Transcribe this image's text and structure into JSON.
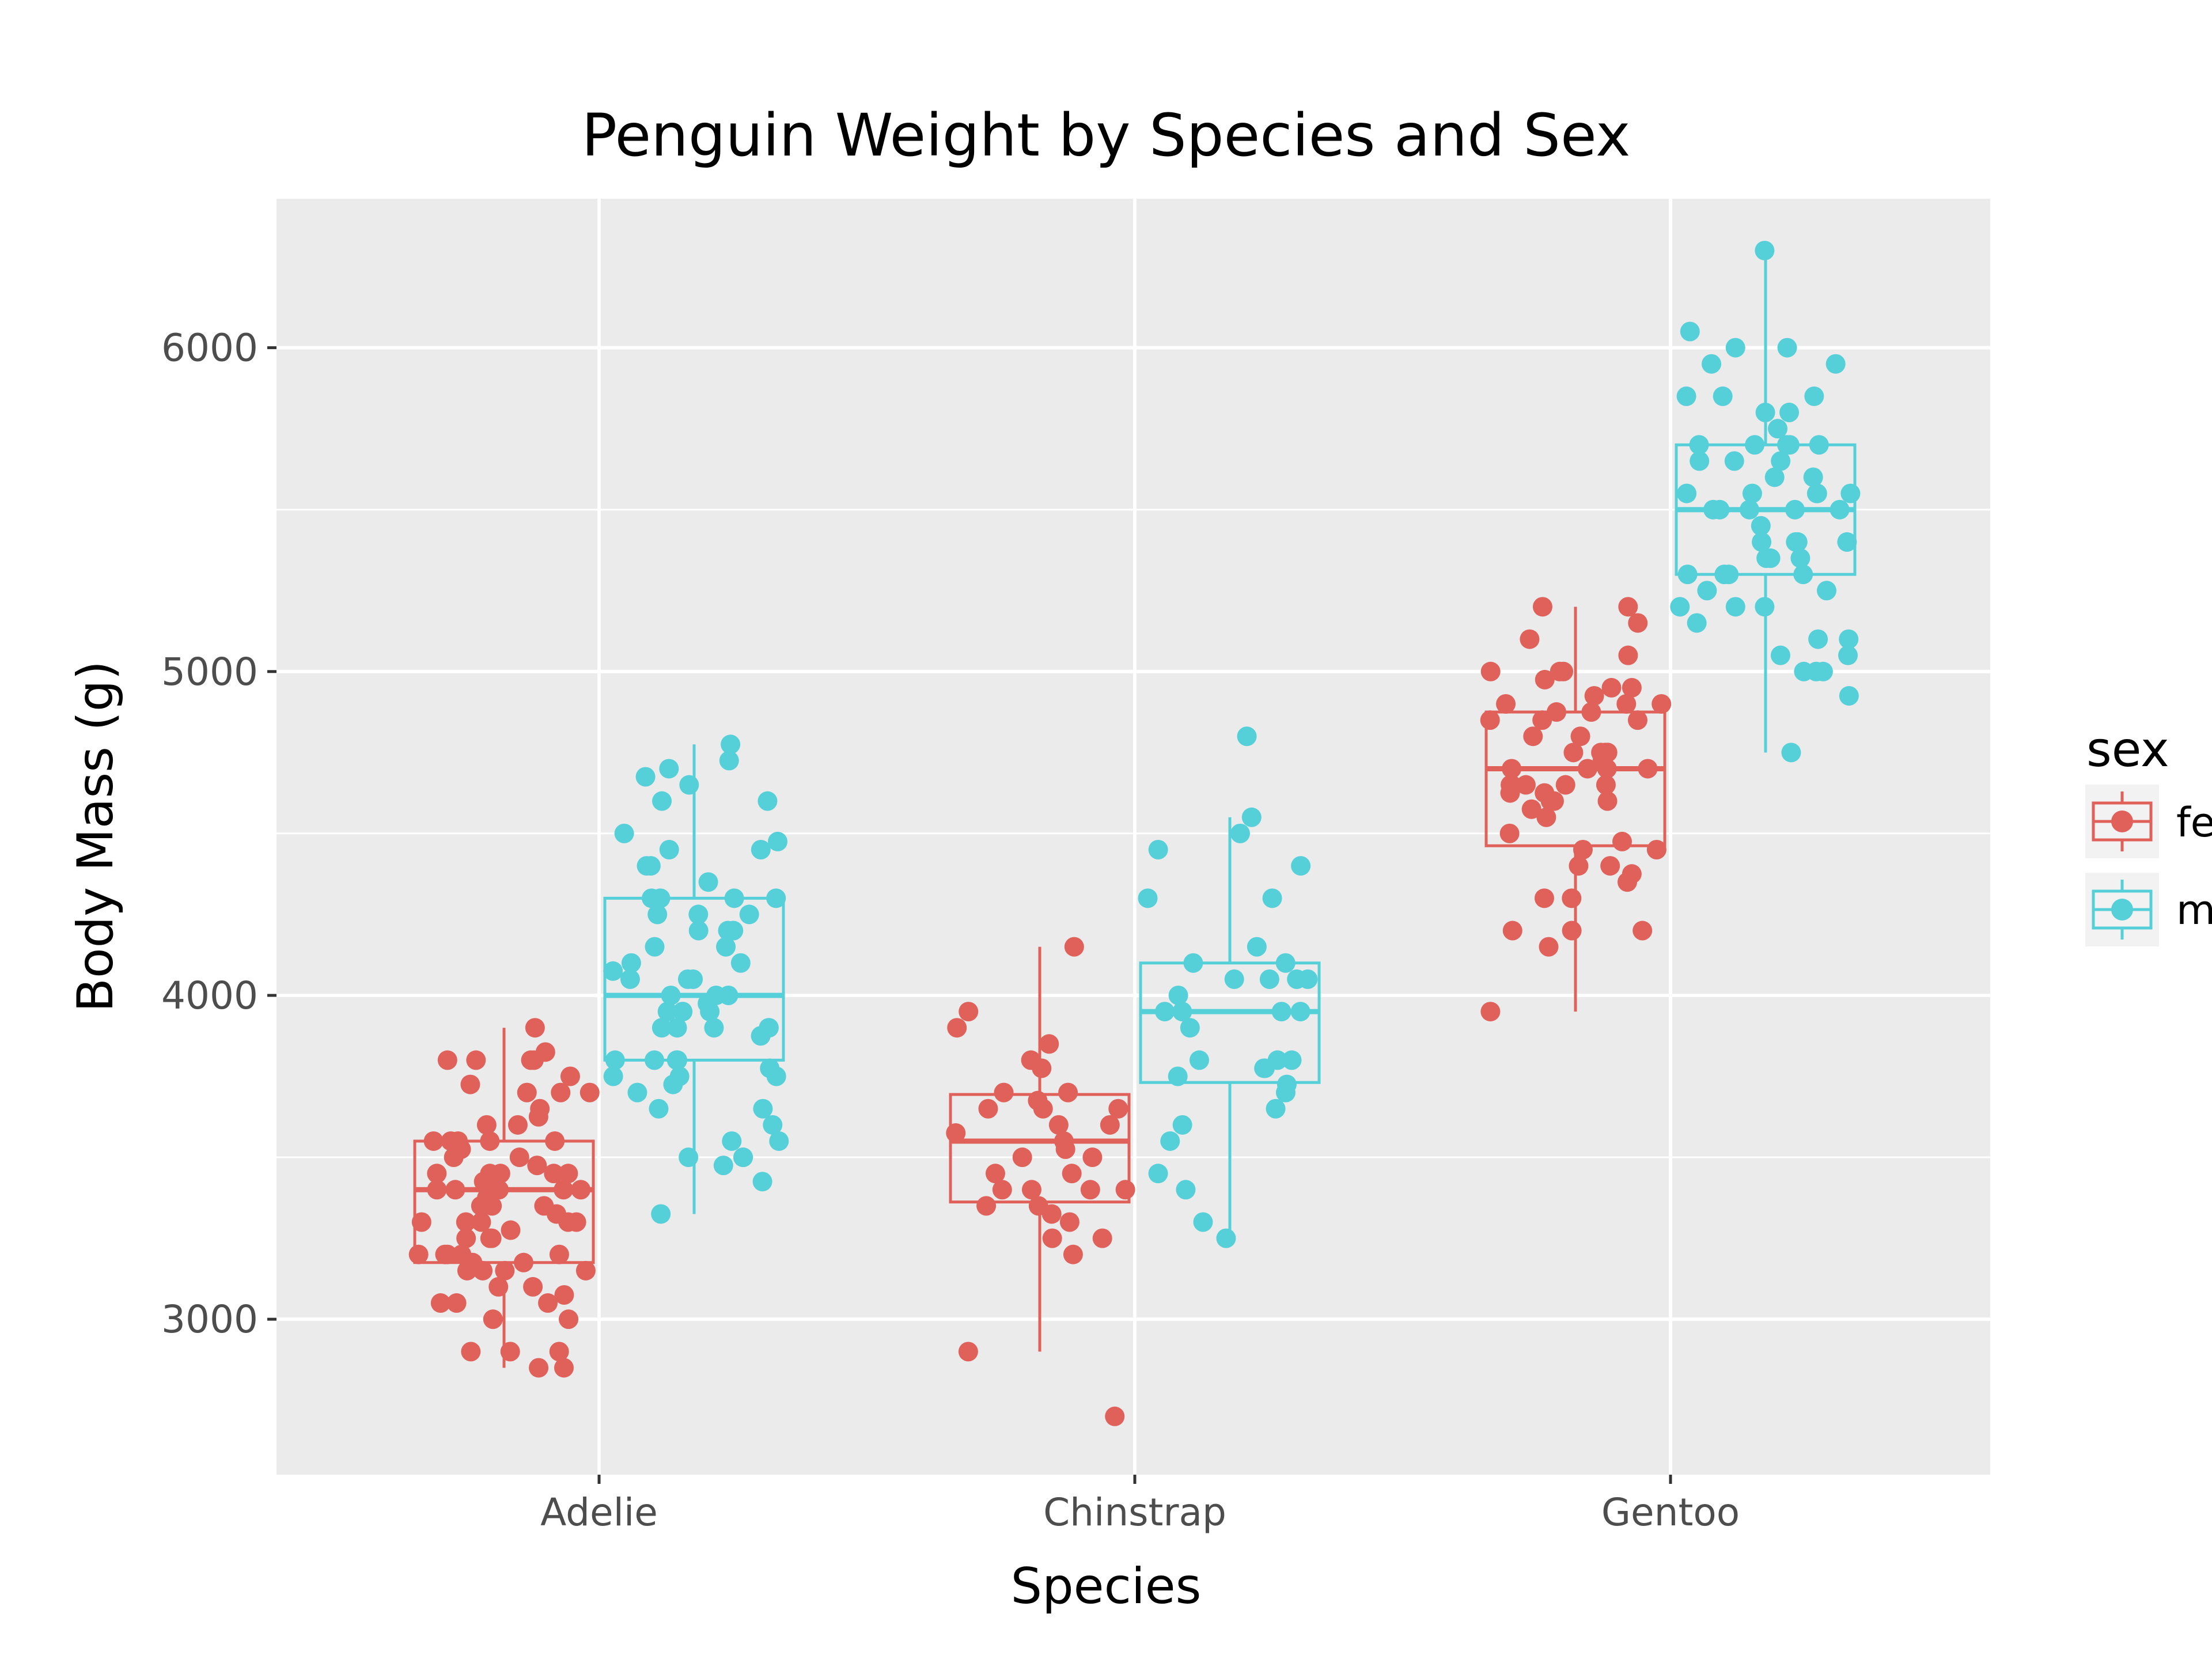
{
  "chart_data": {
    "type": "boxplot",
    "title": "Penguin Weight by Species and Sex",
    "xlabel": "Species",
    "ylabel": "Body Mass (g)",
    "categories": [
      "Adelie",
      "Chinstrap",
      "Gentoo"
    ],
    "ylim": [
      2520,
      6460
    ],
    "yticks": [
      3000,
      4000,
      5000,
      6000
    ],
    "grid": true,
    "legend": {
      "title": "sex",
      "position": "right",
      "labels": [
        "fe",
        "m"
      ]
    },
    "colors": {
      "female": "#e0605a",
      "male": "#55d0d8",
      "panel": "#ebebeb",
      "grid": "#ffffff"
    },
    "series": [
      {
        "name": "female",
        "boxes": [
          {
            "category": "Adelie",
            "whisker_low": 2850,
            "q1": 3175,
            "median": 3400,
            "q3": 3550,
            "whisker_high": 3900
          },
          {
            "category": "Chinstrap",
            "whisker_low": 2900,
            "q1": 3362,
            "median": 3550,
            "q3": 3694,
            "whisker_high": 4150
          },
          {
            "category": "Gentoo",
            "whisker_low": 3950,
            "q1": 4462,
            "median": 4700,
            "q3": 4875,
            "whisker_high": 5200
          }
        ],
        "points": [
          {
            "category": "Adelie",
            "values": [
              3800,
              3725,
              3700,
              3700,
              3900,
              3800,
              3800,
              3750,
              3650,
              3700,
              3825,
              3800,
              3550,
              3550,
              3600,
              3550,
              3500,
              3450,
              3450,
              3400,
              3400,
              3400,
              3350,
              3350,
              3300,
              3300,
              3300,
              3300,
              3250,
              3250,
              3200,
              3200,
              3200,
              3175,
              3150,
              3150,
              3150,
              3100,
              3050,
              3050,
              3000,
              3000,
              2900,
              2900,
              2900,
              2850,
              2850,
              3450,
              3500,
              3550,
              3475,
              3600,
              3625,
              3200,
              3425,
              3375,
              3450,
              3400,
              3350,
              3300,
              3525,
              3050,
              3100,
              3200,
              3150,
              3250,
              3550,
              3400,
              3325,
              3450,
              3275,
              3075,
              3175
            ]
          },
          {
            "category": "Chinstrap",
            "values": [
              4150,
              3900,
              3850,
              3800,
              3775,
              3700,
              3700,
              3675,
              3650,
              3650,
              3650,
              3600,
              3600,
              3575,
              3550,
              3525,
              3500,
              3500,
              3450,
              3400,
              3400,
              3400,
              3350,
              3350,
              3325,
              3300,
              3250,
              3250,
              3200,
              2900,
              2700,
              3950,
              3450,
              3400
            ]
          },
          {
            "category": "Gentoo",
            "values": [
              5200,
              5200,
              5150,
              5100,
              5050,
              5000,
              5000,
              5000,
              4975,
              4950,
              4950,
              4900,
              4900,
              4875,
              4850,
              4850,
              4850,
              4800,
              4800,
              4750,
              4750,
              4750,
              4750,
              4725,
              4700,
              4700,
              4700,
              4700,
              4650,
              4650,
              4650,
              4625,
              4600,
              4600,
              4600,
              4575,
              4550,
              4500,
              4450,
              4450,
              4400,
              4400,
              4375,
              4350,
              4300,
              4300,
              4200,
              4200,
              4200,
              4150,
              3950,
              4925,
              4875,
              4900,
              4650,
              4625,
              4650,
              4475
            ]
          }
        ]
      },
      {
        "name": "male",
        "boxes": [
          {
            "category": "Adelie",
            "whisker_low": 3325,
            "q1": 3800,
            "median": 4000,
            "q3": 4300,
            "whisker_high": 4775
          },
          {
            "category": "Chinstrap",
            "whisker_low": 3250,
            "q1": 3731,
            "median": 3950,
            "q3": 4100,
            "whisker_high": 4550
          },
          {
            "category": "Gentoo",
            "whisker_low": 4750,
            "q1": 5300,
            "median": 5500,
            "q3": 5700,
            "whisker_high": 6300
          }
        ],
        "points": [
          {
            "category": "Adelie",
            "values": [
              4775,
              4725,
              4700,
              4675,
              4650,
              4600,
              4600,
              4500,
              4450,
              4450,
              4475,
              4400,
              4400,
              4350,
              4300,
              4300,
              4300,
              4300,
              4250,
              4250,
              4250,
              4200,
              4200,
              4200,
              4150,
              4150,
              4100,
              4100,
              4075,
              4050,
              4050,
              4050,
              4000,
              4000,
              4000,
              3975,
              3950,
              3950,
              3950,
              3950,
              3900,
              3900,
              3900,
              3900,
              3900,
              3875,
              3800,
              3800,
              3800,
              3800,
              3775,
              3750,
              3750,
              3750,
              3725,
              3700,
              3650,
              3650,
              3600,
              3550,
              3550,
              3500,
              3500,
              3475,
              3425,
              3325,
              3500
            ]
          },
          {
            "category": "Chinstrap",
            "values": [
              4800,
              4550,
              4500,
              4450,
              4400,
              4300,
              4300,
              4150,
              4100,
              4100,
              4050,
              4050,
              4050,
              4050,
              4000,
              3950,
              3950,
              3950,
              3950,
              3900,
              3800,
              3800,
              3800,
              3775,
              3775,
              3750,
              3725,
              3700,
              3650,
              3600,
              3550,
              3450,
              3400,
              3300,
              3250
            ]
          },
          {
            "category": "Gentoo",
            "values": [
              6300,
              6050,
              6000,
              6000,
              5950,
              5950,
              5850,
              5850,
              5850,
              5800,
              5800,
              5750,
              5700,
              5700,
              5700,
              5700,
              5700,
              5650,
              5650,
              5650,
              5600,
              5600,
              5550,
              5550,
              5550,
              5550,
              5550,
              5500,
              5500,
              5500,
              5500,
              5500,
              5450,
              5400,
              5400,
              5400,
              5400,
              5350,
              5350,
              5350,
              5300,
              5300,
              5300,
              5300,
              5250,
              5250,
              5200,
              5200,
              5200,
              5150,
              5100,
              5100,
              5050,
              5050,
              5000,
              5000,
              5000,
              4925,
              4750
            ]
          }
        ]
      }
    ]
  }
}
